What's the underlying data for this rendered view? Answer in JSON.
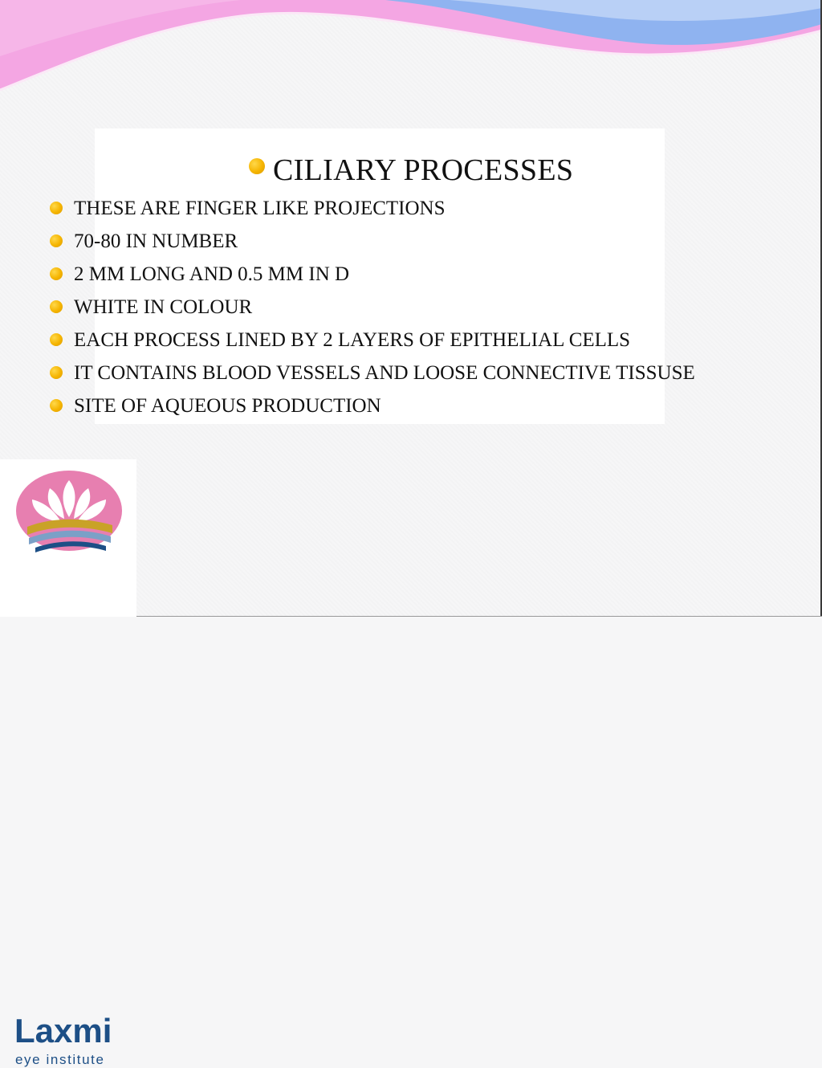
{
  "slide": {
    "title": "CILIARY PROCESSES",
    "bullets": [
      "THESE ARE FINGER LIKE PROJECTIONS",
      "70-80 IN NUMBER",
      "2 MM LONG AND 0.5 MM IN D",
      "WHITE IN COLOUR",
      "EACH PROCESS LINED BY 2 LAYERS OF EPITHELIAL CELLS",
      "IT CONTAINS BLOOD VESSELS AND LOOSE CONNECTIVE TISSUSE",
      "SITE OF AQUEOUS PRODUCTION"
    ]
  },
  "logo": {
    "name": "Laxmi",
    "subtitle": "eye institute"
  },
  "colors": {
    "bullet": "#f5b400",
    "wave_pink": "#f4a6e3",
    "wave_blue": "#8fb3f0",
    "logo_pink": "#e77fb0",
    "logo_blue": "#1d4f86",
    "logo_gold": "#c9a227"
  }
}
